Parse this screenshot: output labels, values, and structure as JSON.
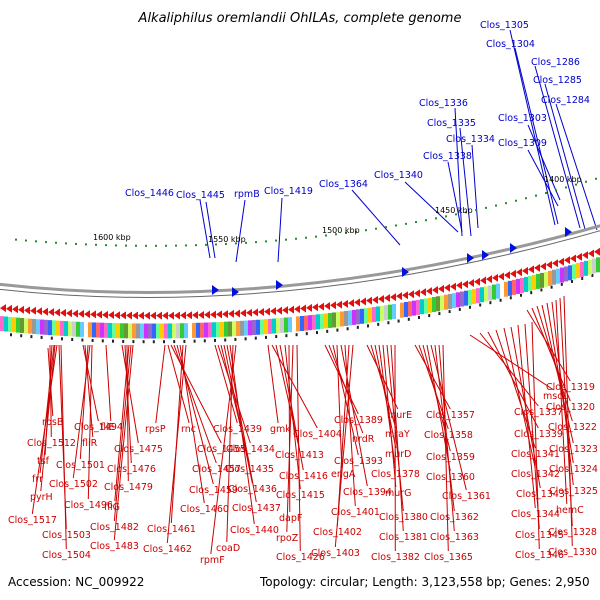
{
  "title": "Alkaliphilus oremlandii OhILAs, complete genome",
  "accession": "Accession: NC_009922",
  "topology": "Topology: circular; Length: 3,123,558 bp; Genes: 2,950",
  "kbp_labels": [
    "1600 kbp",
    "1550 kbp",
    "1500 kbp",
    "1450 kbp",
    "1400 kbp"
  ],
  "blue_labels": [
    "Clos_1305",
    "Clos_1304",
    "Clos_1286",
    "Clos_1285",
    "Clos_1284",
    "Clos_1336",
    "Clos_1335",
    "Clos_1334",
    "Clos_1303",
    "Clos_1338",
    "Clos_1309",
    "Clos_1340",
    "Clos_1364",
    "Clos_1446",
    "Clos_1445",
    "rpmB",
    "Clos_1419"
  ],
  "red_labels": [
    "rpsB",
    "Clos_1512",
    "tsf",
    "frr",
    "pyrH",
    "Clos_1517",
    "Clos_1503",
    "Clos_1504",
    "Clos_1494",
    "fliR",
    "Clos_1501",
    "Clos_1502",
    "Clos_1496",
    "fliE",
    "Clos_1475",
    "Clos_1476",
    "Clos_1479",
    "fliG",
    "Clos_1482",
    "Clos_1483",
    "rpsP",
    "rnc",
    "Clos_1455",
    "Clos_1457",
    "Clos_1459",
    "Clos_1460",
    "Clos_1461",
    "Clos_1462",
    "Clos_1439",
    "Clos_1434",
    "Clos_1435",
    "Clos_1436",
    "Clos_1437",
    "Clos_1440",
    "coaD",
    "rpmF",
    "gmk",
    "Clos_1404",
    "Clos_1413",
    "Clos_1416",
    "Clos_1415",
    "dapF",
    "rpoZ",
    "Clos_1426",
    "Clos_1389",
    "nrdR",
    "Clos_1393",
    "engA",
    "Clos_1394",
    "Clos_1401",
    "Clos_1402",
    "Clos_1403",
    "murE",
    "mraY",
    "murD",
    "Clos_1378",
    "murG",
    "Clos_1380",
    "Clos_1381",
    "Clos_1382",
    "Clos_1357",
    "Clos_1358",
    "Clos_1359",
    "Clos_1360",
    "Clos_1361",
    "Clos_1362",
    "Clos_1363",
    "Clos_1365",
    "mscL",
    "Clos_1337",
    "Clos_1339",
    "Clos_1341",
    "Clos_1342",
    "Clos_1343",
    "Clos_1344",
    "Clos_1345",
    "Clos_1346",
    "Clos_1319",
    "Clos_1320",
    "Clos_1322",
    "Clos_1323",
    "Clos_1324",
    "Clos_1325",
    "hemC",
    "Clos_1328",
    "Clos_1330"
  ],
  "colors": {
    "forward": "#0000cc",
    "reverse": "#cc0000",
    "backbone": "#888888",
    "gc_marker": "#2a8a2a"
  }
}
